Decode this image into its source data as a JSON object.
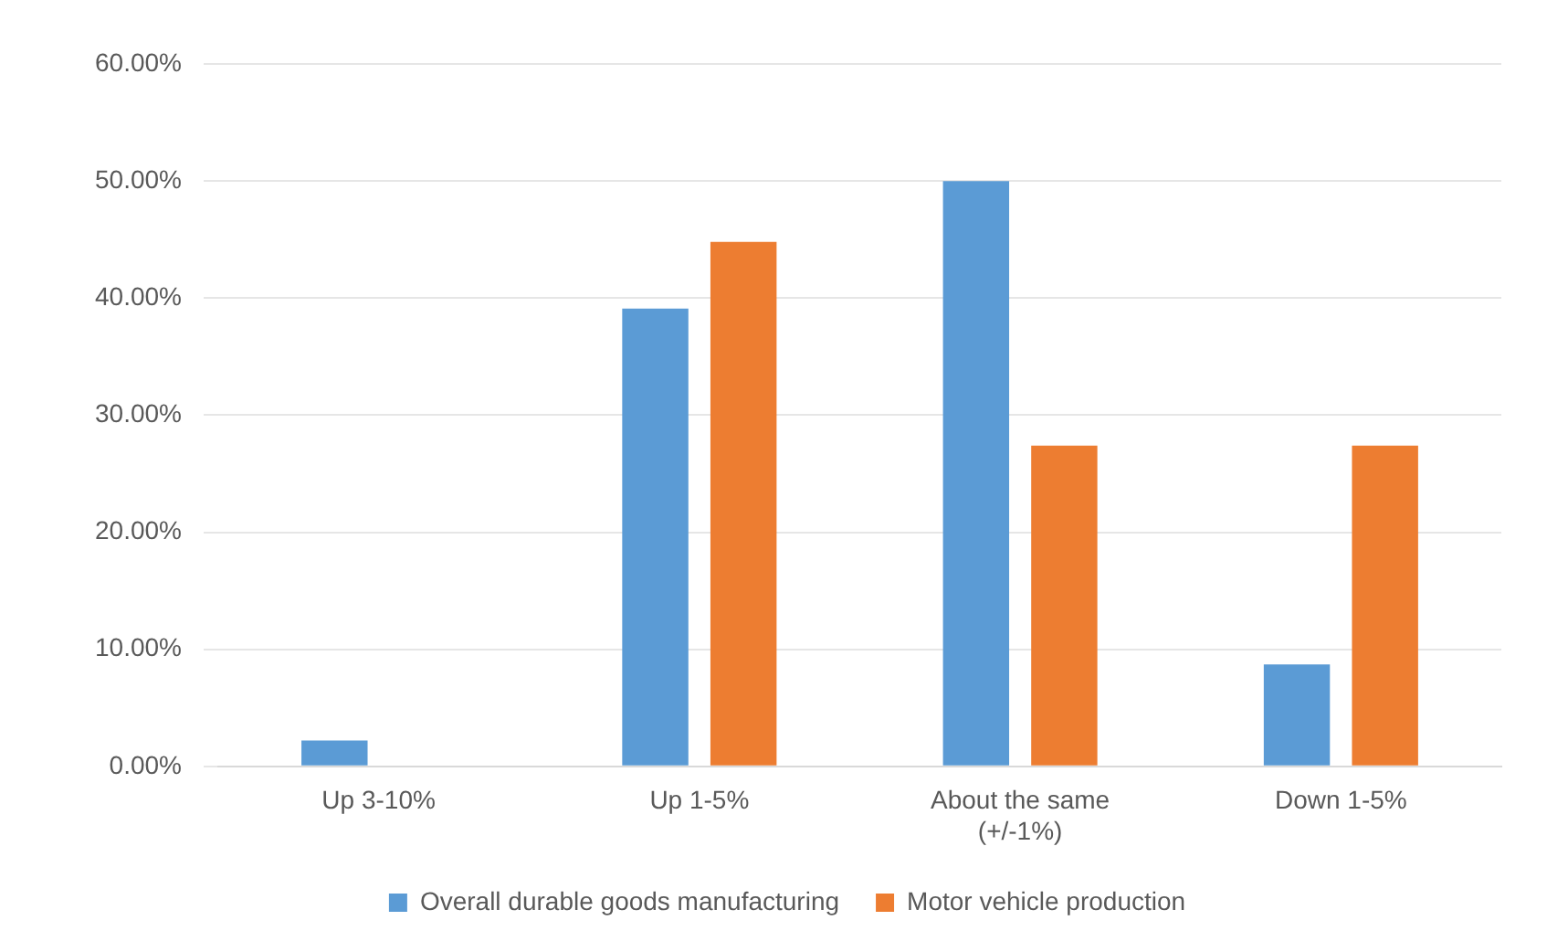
{
  "chart_data": {
    "type": "bar",
    "categories": [
      "Up 3-10%",
      "Up 1-5%",
      "About the same (+/-1%)",
      "Down 1-5%"
    ],
    "series": [
      {
        "name": "Overall durable goods manufacturing",
        "color": "#5b9bd5",
        "values": [
          2.2,
          39.1,
          50,
          8.7
        ]
      },
      {
        "name": "Motor vehicle production",
        "color": "#ed7d31",
        "values": [
          0,
          44.8,
          27.4,
          27.4
        ]
      }
    ],
    "ylim": [
      0,
      60
    ],
    "yticks": [
      {
        "value": 0,
        "label": "0.00%"
      },
      {
        "value": 10,
        "label": "10.00%"
      },
      {
        "value": 20,
        "label": "20.00%"
      },
      {
        "value": 30,
        "label": "30.00%"
      },
      {
        "value": 40,
        "label": "40.00%"
      },
      {
        "value": 50,
        "label": "50.00%"
      },
      {
        "value": 60,
        "label": "60.00%"
      }
    ],
    "grid": "y",
    "legend": "bottom"
  }
}
